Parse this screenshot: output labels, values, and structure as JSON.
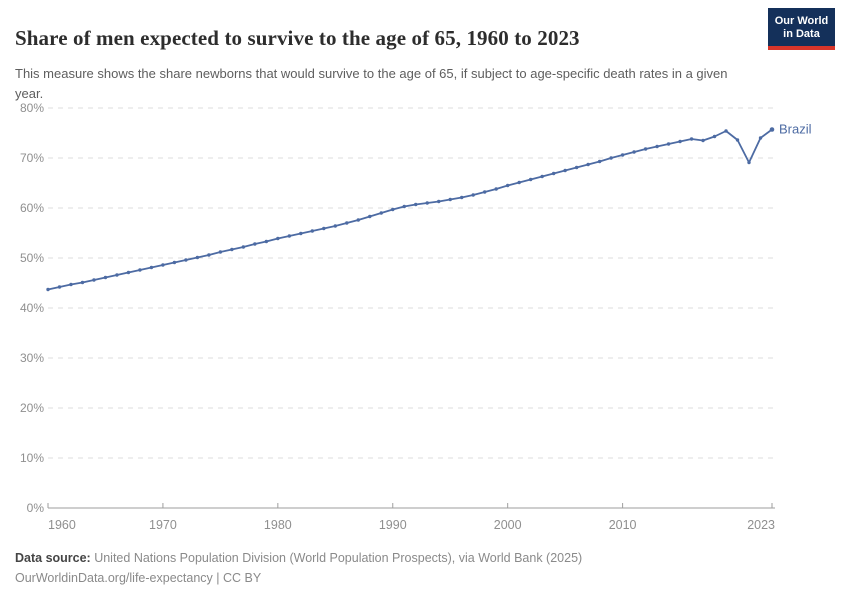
{
  "header": {
    "title": "Share of men expected to survive to the age of 65, 1960 to 2023",
    "subtitle": "This measure shows the share newborns that would survive to the age of 65, if subject to age-specific death rates in a given year.",
    "logo": {
      "line1": "Our World",
      "line2": "in Data",
      "bg_color": "#14305a",
      "bar_color": "#d8352a"
    }
  },
  "chart_data": {
    "type": "line",
    "title": "Share of men expected to survive to the age of 65, 1960 to 2023",
    "xlabel": "",
    "ylabel": "",
    "unit": "%",
    "xlim": [
      1960,
      2023
    ],
    "ylim": [
      0,
      80
    ],
    "y_tick_step": 10,
    "y_tick_labels": [
      "0%",
      "10%",
      "20%",
      "30%",
      "40%",
      "50%",
      "60%",
      "70%",
      "80%"
    ],
    "x_ticks": [
      1960,
      1970,
      1980,
      1990,
      2000,
      2010,
      2023
    ],
    "grid": "horizontal-dashed",
    "legend_position": "end-of-line",
    "series": [
      {
        "name": "Brazil",
        "color": "#4d6ba3",
        "x": [
          1960,
          1961,
          1962,
          1963,
          1964,
          1965,
          1966,
          1967,
          1968,
          1969,
          1970,
          1971,
          1972,
          1973,
          1974,
          1975,
          1976,
          1977,
          1978,
          1979,
          1980,
          1981,
          1982,
          1983,
          1984,
          1985,
          1986,
          1987,
          1988,
          1989,
          1990,
          1991,
          1992,
          1993,
          1994,
          1995,
          1996,
          1997,
          1998,
          1999,
          2000,
          2001,
          2002,
          2003,
          2004,
          2005,
          2006,
          2007,
          2008,
          2009,
          2010,
          2011,
          2012,
          2013,
          2014,
          2015,
          2016,
          2017,
          2018,
          2019,
          2020,
          2021,
          2022,
          2023
        ],
        "values": [
          43.7,
          44.2,
          44.7,
          45.1,
          45.6,
          46.1,
          46.6,
          47.1,
          47.6,
          48.1,
          48.6,
          49.1,
          49.6,
          50.1,
          50.6,
          51.2,
          51.7,
          52.2,
          52.8,
          53.3,
          53.9,
          54.4,
          54.9,
          55.4,
          55.9,
          56.4,
          57.0,
          57.6,
          58.3,
          59.0,
          59.7,
          60.3,
          60.7,
          61.0,
          61.3,
          61.7,
          62.1,
          62.6,
          63.2,
          63.8,
          64.5,
          65.1,
          65.7,
          66.3,
          66.9,
          67.5,
          68.1,
          68.7,
          69.3,
          70.0,
          70.6,
          71.2,
          71.8,
          72.3,
          72.8,
          73.3,
          73.8,
          73.5,
          74.3,
          75.4,
          73.6,
          69.1,
          74.0,
          75.7
        ]
      }
    ]
  },
  "footer": {
    "source_label": "Data source:",
    "source_text": " United Nations Population Division (World Population Prospects), via World Bank (2025)",
    "license_line": "OurWorldinData.org/life-expectancy | CC BY"
  }
}
